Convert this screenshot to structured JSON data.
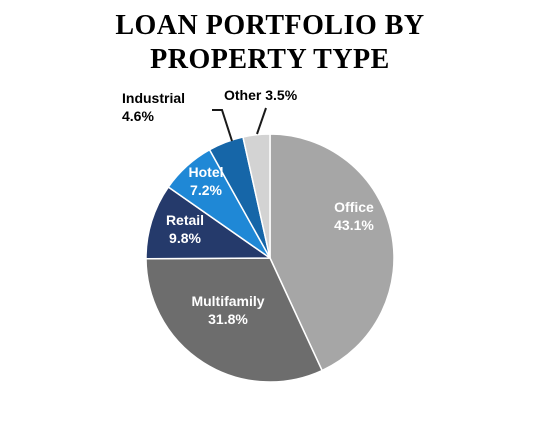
{
  "chart_data": {
    "type": "pie",
    "title_lines": [
      "LOAN PORTFOLIO BY",
      "PROPERTY TYPE"
    ],
    "slices": [
      {
        "label": "Office",
        "value": 43.1,
        "value_label": "43.1%",
        "color": "#a6a6a6",
        "label_color": "#ffffff",
        "label_style": "inside"
      },
      {
        "label": "Multifamily",
        "value": 31.8,
        "value_label": "31.8%",
        "color": "#6d6d6d",
        "label_color": "#ffffff",
        "label_style": "inside"
      },
      {
        "label": "Retail",
        "value": 9.8,
        "value_label": "9.8%",
        "color": "#253a6b",
        "label_color": "#ffffff",
        "label_style": "inside"
      },
      {
        "label": "Hotel",
        "value": 7.2,
        "value_label": "7.2%",
        "color": "#1f88d6",
        "label_color": "#ffffff",
        "label_style": "inside"
      },
      {
        "label": "Industrial",
        "value": 4.6,
        "value_label": "4.6%",
        "color": "#1666a8",
        "label_color": "#000000",
        "label_style": "outside-two-line"
      },
      {
        "label": "Other",
        "value": 3.5,
        "value_label": "3.5%",
        "color": "#d3d3d3",
        "label_color": "#000000",
        "label_style": "outside-one-line"
      }
    ],
    "start_angle_deg": 0,
    "direction": "clockwise",
    "legend": "none"
  }
}
